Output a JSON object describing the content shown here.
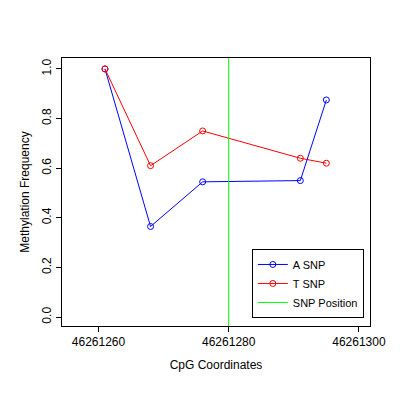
{
  "chart_data": {
    "type": "line",
    "x_label": "CpG Coordinates",
    "y_label": "Methylation Frequency",
    "x": [
      46261261,
      46261268,
      46261276,
      46261291,
      46261295
    ],
    "series": [
      {
        "name": "A SNP",
        "color": "#0000ff",
        "values": [
          1.0,
          0.365,
          0.545,
          0.55,
          0.875
        ]
      },
      {
        "name": "T SNP",
        "color": "#ff0000",
        "values": [
          1.0,
          0.61,
          0.75,
          0.64,
          0.62
        ]
      }
    ],
    "snp_position": {
      "name": "SNP Position",
      "x": 46261280,
      "color": "#00ff00"
    },
    "xlim": [
      46261254.4,
      46261301.7
    ],
    "xticks": [
      46261260,
      46261280,
      46261300
    ],
    "ylim": [
      -0.036,
      1.044
    ],
    "yticks": [
      {
        "value": 0,
        "label": "0.0"
      },
      0.2,
      0.4,
      0.6,
      0.8,
      {
        "value": 1,
        "label": "1.0"
      }
    ],
    "marker": "open circle",
    "grid": false,
    "legend": "lower right"
  }
}
